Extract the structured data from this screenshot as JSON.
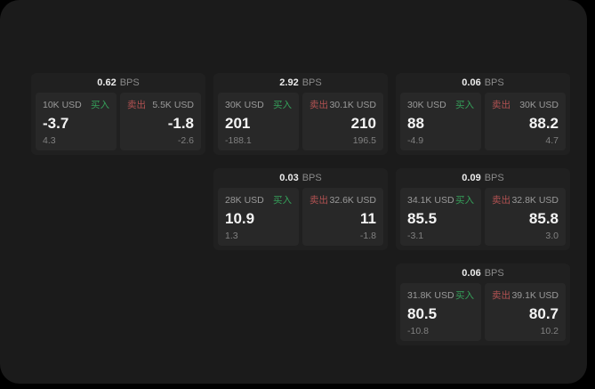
{
  "labels": {
    "bps_suffix": "BPS",
    "buy": "买入",
    "sell": "卖出"
  },
  "colors": {
    "buy_green": "#35a05a",
    "sell_red": "#b25252",
    "surface": "#1b1b1b",
    "card_bg": "#202020",
    "tile_bg": "#282828"
  },
  "cards": [
    {
      "row": 1,
      "col": 1,
      "bps": "0.62",
      "buy": {
        "size": "10K USD",
        "price": "-3.7",
        "sub": "4.3"
      },
      "sell": {
        "size": "5.5K USD",
        "price": "-1.8",
        "sub": "-2.6"
      }
    },
    {
      "row": 1,
      "col": 2,
      "bps": "2.92",
      "buy": {
        "size": "30K USD",
        "price": "201",
        "sub": "-188.1"
      },
      "sell": {
        "size": "30.1K USD",
        "price": "210",
        "sub": "196.5"
      }
    },
    {
      "row": 1,
      "col": 3,
      "bps": "0.06",
      "buy": {
        "size": "30K USD",
        "price": "88",
        "sub": "-4.9"
      },
      "sell": {
        "size": "30K USD",
        "price": "88.2",
        "sub": "4.7"
      }
    },
    {
      "row": 2,
      "col": 2,
      "bps": "0.03",
      "buy": {
        "size": "28K USD",
        "price": "10.9",
        "sub": "1.3"
      },
      "sell": {
        "size": "32.6K USD",
        "price": "11",
        "sub": "-1.8"
      }
    },
    {
      "row": 2,
      "col": 3,
      "bps": "0.09",
      "buy": {
        "size": "34.1K USD",
        "price": "85.5",
        "sub": "-3.1"
      },
      "sell": {
        "size": "32.8K USD",
        "price": "85.8",
        "sub": "3.0"
      }
    },
    {
      "row": 3,
      "col": 3,
      "bps": "0.06",
      "buy": {
        "size": "31.8K USD",
        "price": "80.5",
        "sub": "-10.8"
      },
      "sell": {
        "size": "39.1K USD",
        "price": "80.7",
        "sub": "10.2"
      }
    }
  ]
}
